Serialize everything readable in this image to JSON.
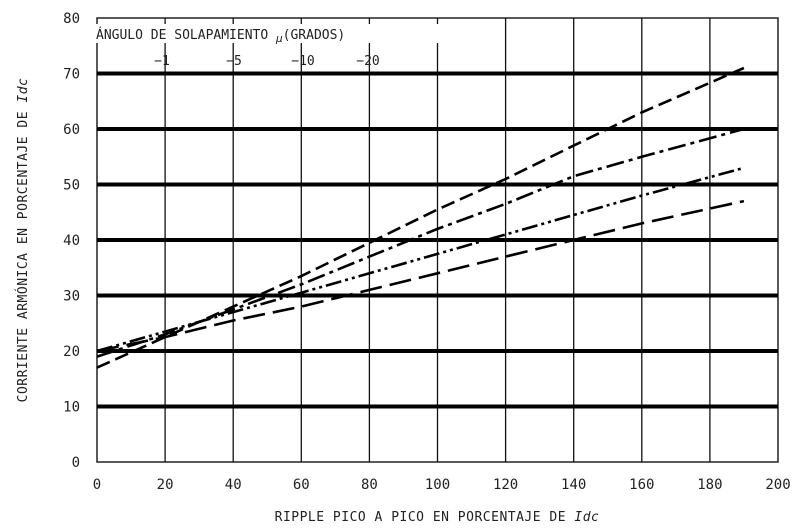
{
  "chart_data": {
    "type": "line",
    "title": "",
    "xlabel": "RIPPLE PICO A PICO EN PORCENTAJE DE",
    "xlabel_var": "Idc",
    "ylabel": "CORRIENTE ARMÓNICA EN PORCENTAJE DE",
    "ylabel_var": "Idc",
    "xlim": [
      0,
      200
    ],
    "ylim": [
      0,
      80
    ],
    "x_ticks": [
      "0",
      "20",
      "40",
      "60",
      "80",
      "100",
      "120",
      "140",
      "160",
      "180",
      "200"
    ],
    "y_ticks": [
      "0",
      "10",
      "20",
      "30",
      "40",
      "50",
      "60",
      "70",
      "80"
    ],
    "grid": true,
    "legend": {
      "title_pre": "ÁNGULO DE SOLAPAMIENTO",
      "title_symbol": "μ",
      "title_post": "(GRADOS)",
      "labels": [
        "−1",
        "−5",
        "−10",
        "−20"
      ]
    },
    "series": [
      {
        "name": "−1",
        "dash": "dash",
        "x": [
          0,
          20,
          40,
          60,
          80,
          100,
          120,
          140,
          160,
          190
        ],
        "y": [
          17,
          22.5,
          28,
          33.5,
          39.5,
          45.5,
          51,
          57,
          63,
          71
        ]
      },
      {
        "name": "−5",
        "dash": "dashdot",
        "x": [
          0,
          20,
          40,
          60,
          80,
          100,
          120,
          140,
          160,
          190
        ],
        "y": [
          19,
          23,
          27.5,
          32,
          37,
          42,
          46.5,
          51.5,
          55,
          60
        ]
      },
      {
        "name": "−10",
        "dash": "dashdotdot",
        "x": [
          0,
          20,
          40,
          60,
          80,
          100,
          120,
          140,
          160,
          190
        ],
        "y": [
          20,
          23.5,
          27,
          30.5,
          34,
          37.5,
          41,
          44.5,
          48,
          53
        ]
      },
      {
        "name": "−20",
        "dash": "longdash",
        "x": [
          0,
          20,
          40,
          60,
          80,
          100,
          120,
          140,
          160,
          190
        ],
        "y": [
          20,
          22.5,
          25.5,
          28,
          31,
          34,
          37,
          40,
          43,
          47
        ]
      }
    ]
  }
}
